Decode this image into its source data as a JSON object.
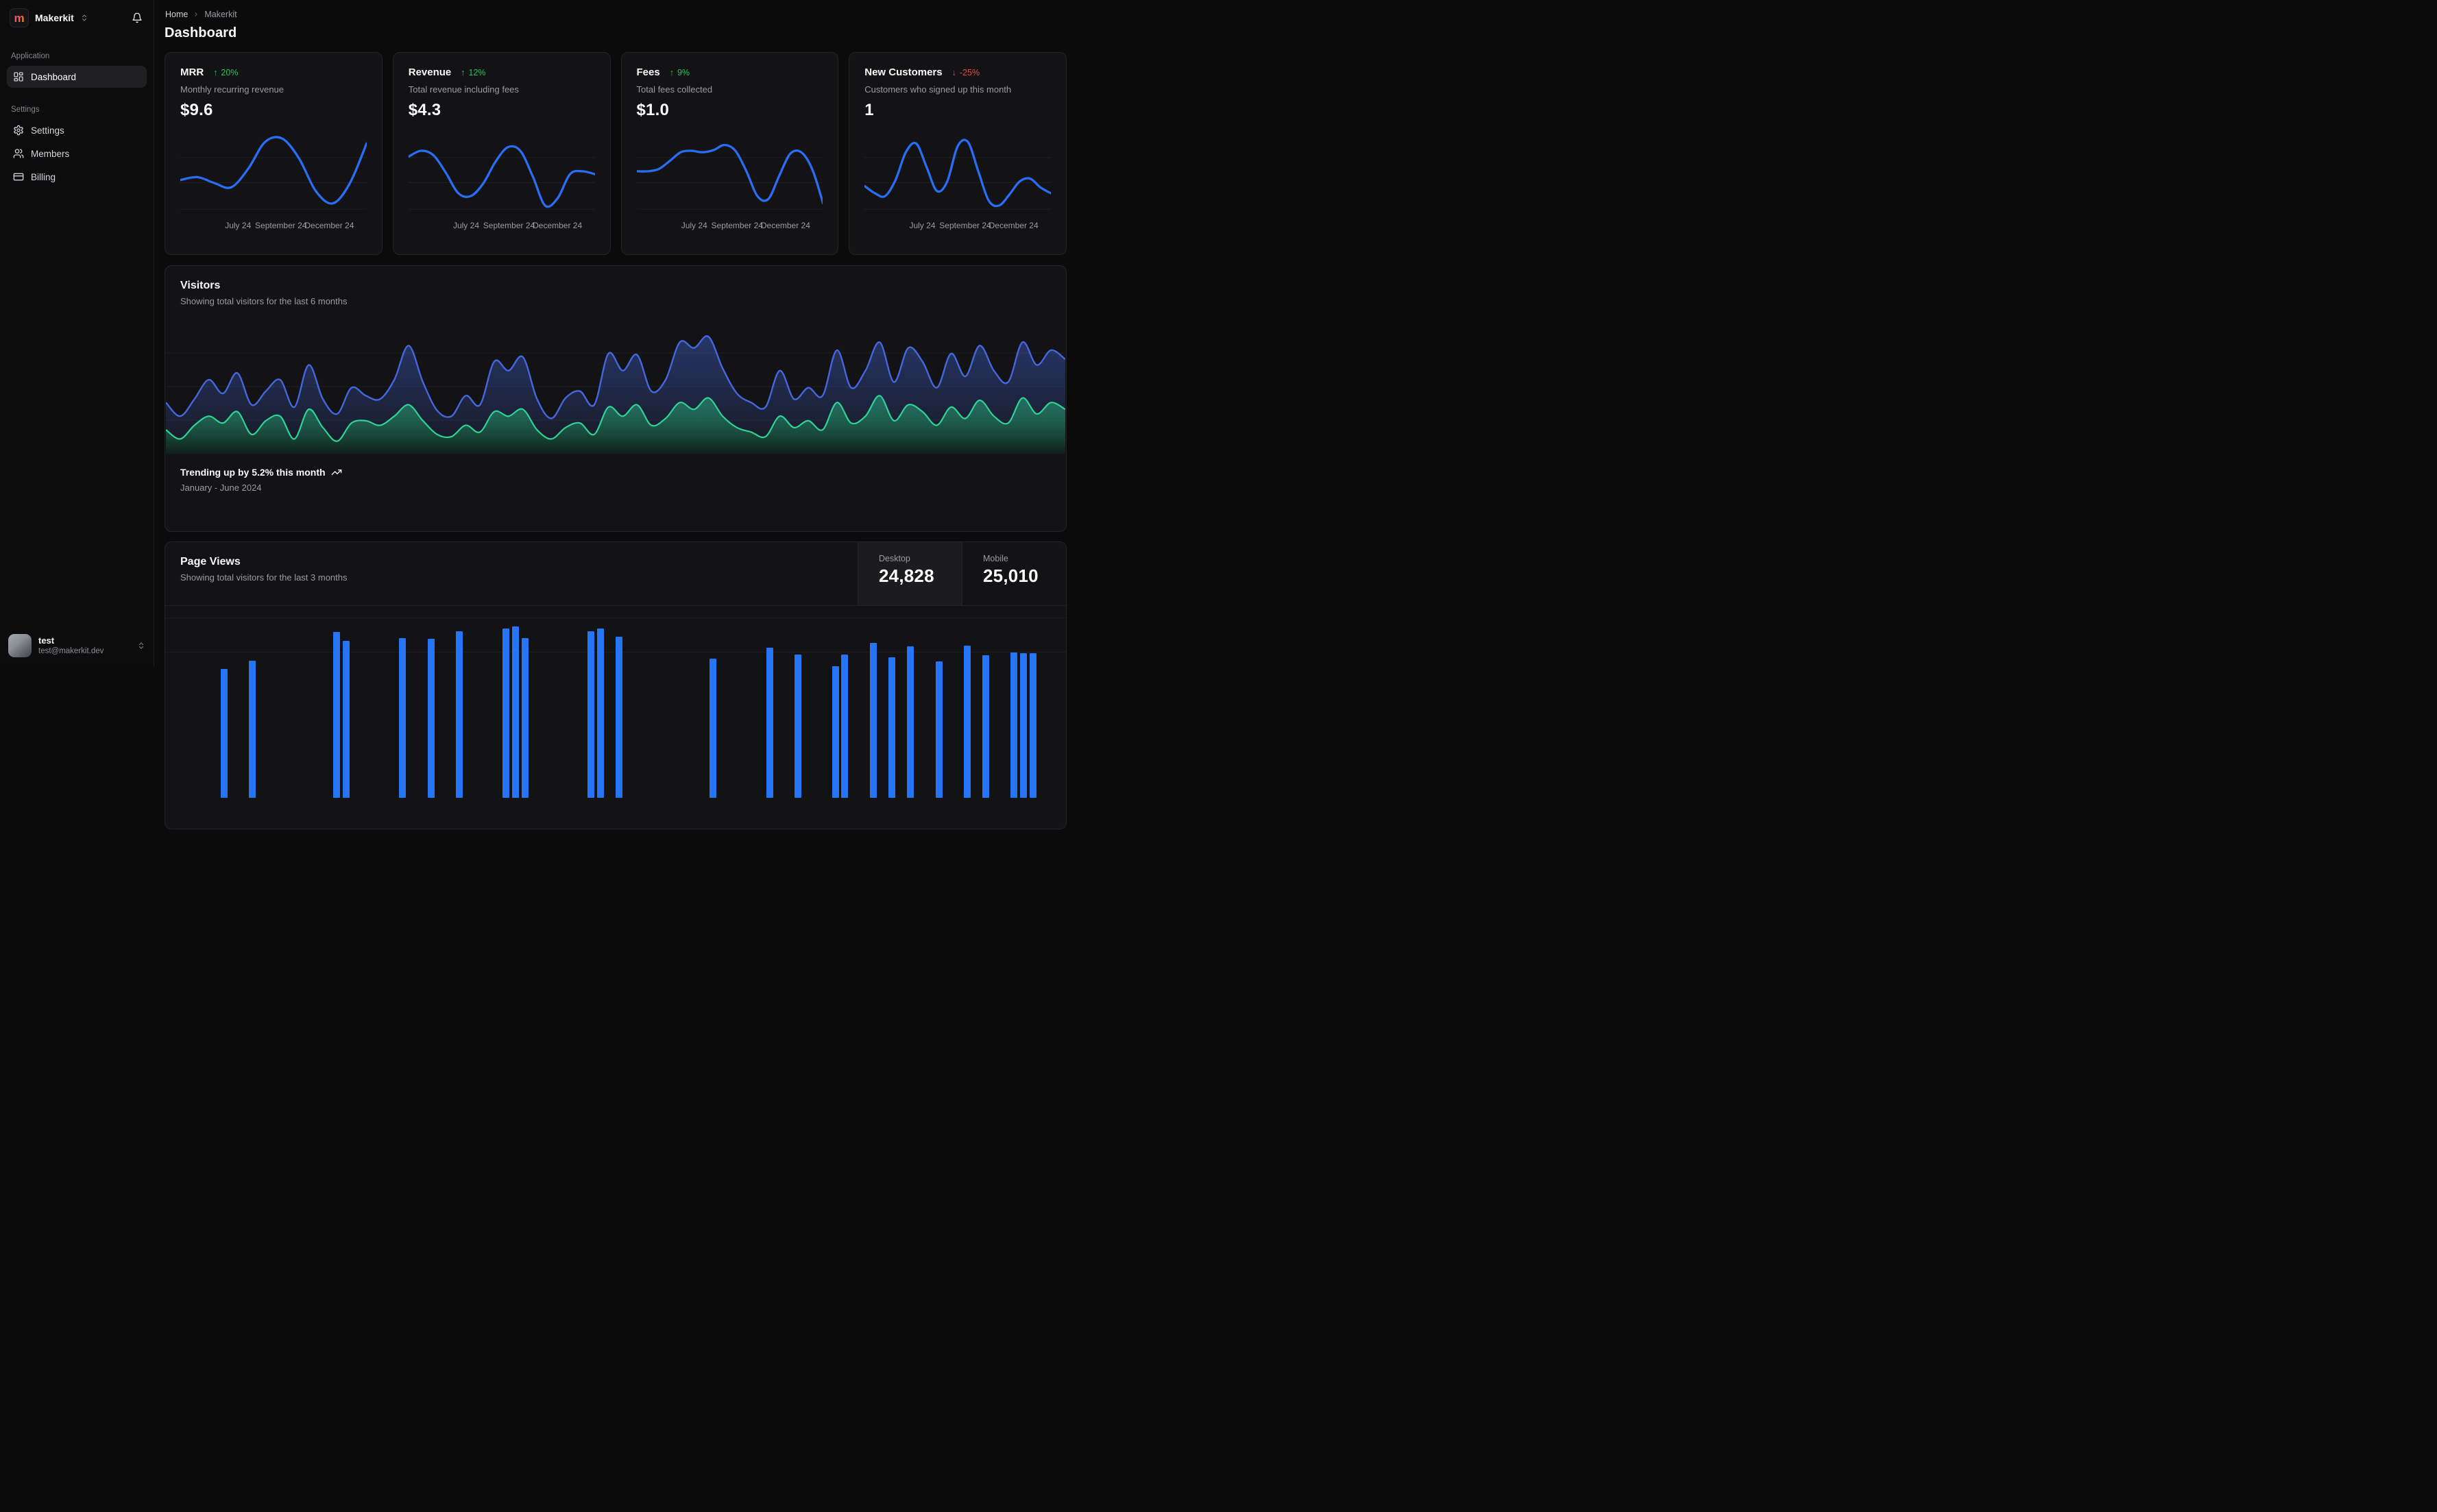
{
  "app": {
    "brand": "Makerkit",
    "logo_letter": "m",
    "user": {
      "name": "test",
      "email": "test@makerkit.dev"
    }
  },
  "sidebar": {
    "sections": [
      {
        "label": "Application",
        "items": [
          {
            "label": "Dashboard",
            "icon": "dashboard-icon",
            "active": true
          }
        ]
      },
      {
        "label": "Settings",
        "items": [
          {
            "label": "Settings",
            "icon": "gear-icon",
            "active": false
          },
          {
            "label": "Members",
            "icon": "users-icon",
            "active": false
          },
          {
            "label": "Billing",
            "icon": "credit-card-icon",
            "active": false
          }
        ]
      }
    ]
  },
  "breadcrumb": {
    "items": [
      "Home",
      "Makerkit"
    ]
  },
  "page_title": "Dashboard",
  "stat_axis_labels": [
    "July 24",
    "September 24",
    "December 24"
  ],
  "stat_cards": [
    {
      "id": "mrr",
      "title": "MRR",
      "trend": "20%",
      "trend_dir": "up",
      "description": "Monthly recurring revenue",
      "value": "$9.6"
    },
    {
      "id": "revenue",
      "title": "Revenue",
      "trend": "12%",
      "trend_dir": "up",
      "description": "Total revenue including fees",
      "value": "$4.3"
    },
    {
      "id": "fees",
      "title": "Fees",
      "trend": "9%",
      "trend_dir": "up",
      "description": "Total fees collected",
      "value": "$1.0"
    },
    {
      "id": "customers",
      "title": "New Customers",
      "trend": "-25%",
      "trend_dir": "down",
      "description": "Customers who signed up this month",
      "value": "1"
    }
  ],
  "visitors": {
    "title": "Visitors",
    "subtitle": "Showing total visitors for the last 6 months",
    "trend_text": "Trending up by 5.2% this month",
    "range_text": "January - June 2024"
  },
  "page_views": {
    "title": "Page Views",
    "subtitle": "Showing total visitors for the last 3 months",
    "tabs": [
      {
        "label": "Desktop",
        "value": "24,828",
        "active": true
      },
      {
        "label": "Mobile",
        "value": "25,010",
        "active": false
      }
    ]
  },
  "colors": {
    "accent_blue": "#2a6df5",
    "bar_blue": "#2575f5",
    "area_blue": "#4467dd",
    "area_green": "#2fd395",
    "trend_green": "#22c55e",
    "trend_red": "#ef4444"
  },
  "chart_data": [
    {
      "id": "mrr-spark",
      "type": "line",
      "color": "#2a6df5",
      "x_tick_labels": [
        "July 24",
        "September 24",
        "December 24"
      ],
      "values": [
        40,
        44,
        36,
        30,
        55,
        92,
        97,
        70,
        25,
        8,
        35,
        90
      ]
    },
    {
      "id": "revenue-spark",
      "type": "line",
      "color": "#2a6df5",
      "x_tick_labels": [
        "July 24",
        "September 24",
        "December 24"
      ],
      "values": [
        72,
        80,
        74,
        50,
        22,
        18,
        35,
        65,
        85,
        80,
        45,
        5,
        15,
        48,
        52,
        48
      ]
    },
    {
      "id": "fees-spark",
      "type": "line",
      "color": "#2a6df5",
      "x_tick_labels": [
        "July 24",
        "September 24",
        "December 24"
      ],
      "values": [
        52,
        52,
        55,
        66,
        78,
        80,
        78,
        81,
        88,
        80,
        52,
        18,
        14,
        46,
        76,
        78,
        55,
        8
      ]
    },
    {
      "id": "customers-spark",
      "type": "line",
      "color": "#2a6df5",
      "x_tick_labels": [
        "July 24",
        "September 24",
        "December 24"
      ],
      "values": [
        32,
        22,
        18,
        40,
        78,
        90,
        58,
        25,
        38,
        86,
        92,
        52,
        12,
        5,
        20,
        38,
        42,
        30,
        22
      ]
    },
    {
      "id": "visitors-area",
      "type": "area",
      "x_range": "January - June 2024",
      "series": [
        {
          "name": "primary",
          "color": "#4467dd",
          "values": [
            42,
            30,
            45,
            62,
            50,
            68,
            40,
            52,
            62,
            38,
            75,
            45,
            32,
            55,
            48,
            45,
            62,
            92,
            60,
            35,
            30,
            48,
            40,
            78,
            70,
            82,
            45,
            28,
            46,
            52,
            40,
            85,
            70,
            84,
            52,
            62,
            95,
            90,
            100,
            72,
            50,
            42,
            38,
            70,
            45,
            55,
            48,
            88,
            55,
            70,
            95,
            60,
            90,
            78,
            55,
            85,
            65,
            92,
            70,
            60,
            95,
            75,
            88,
            80
          ]
        },
        {
          "name": "secondary",
          "color": "#2fd395",
          "values": [
            18,
            10,
            22,
            30,
            24,
            34,
            14,
            26,
            30,
            10,
            36,
            20,
            8,
            24,
            26,
            22,
            30,
            40,
            26,
            14,
            12,
            22,
            16,
            34,
            30,
            36,
            18,
            10,
            20,
            24,
            14,
            38,
            30,
            40,
            22,
            28,
            42,
            36,
            46,
            30,
            20,
            16,
            12,
            30,
            20,
            26,
            18,
            42,
            24,
            30,
            48,
            26,
            40,
            34,
            22,
            38,
            28,
            44,
            30,
            24,
            46,
            32,
            42,
            36
          ]
        }
      ]
    },
    {
      "id": "page-views-bars",
      "type": "bar",
      "color": "#2575f5",
      "values": [
        0,
        0,
        0,
        0,
        0,
        8,
        0,
        0,
        20,
        0,
        0,
        0,
        0,
        0,
        0,
        0,
        0,
        62,
        49,
        0,
        0,
        0,
        0,
        0,
        53,
        0,
        0,
        52,
        0,
        0,
        63,
        0,
        0,
        0,
        0,
        67,
        70,
        53,
        0,
        0,
        0,
        0,
        0,
        0,
        63,
        67,
        0,
        55,
        0,
        0,
        0,
        0,
        0,
        0,
        0,
        0,
        0,
        23,
        0,
        0,
        0,
        0,
        0,
        39,
        0,
        0,
        29,
        0,
        0,
        0,
        12,
        29,
        0,
        0,
        46,
        0,
        25,
        0,
        41,
        0,
        0,
        19,
        0,
        0,
        42,
        0,
        28,
        0,
        0,
        32,
        31,
        31,
        0,
        0
      ]
    }
  ]
}
